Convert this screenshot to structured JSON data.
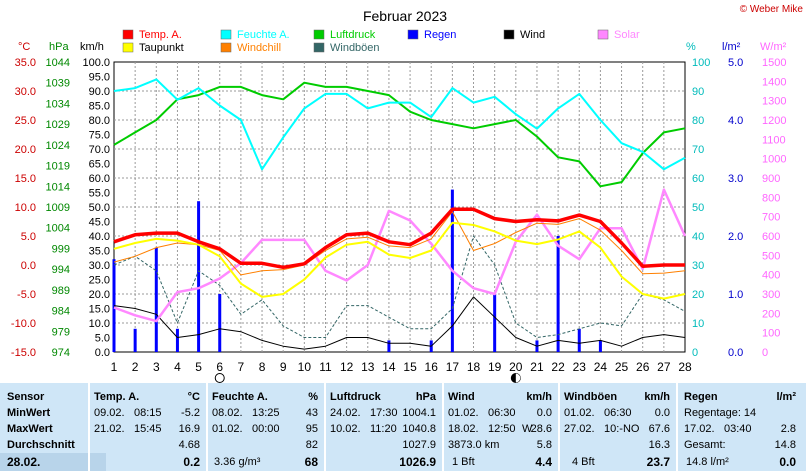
{
  "title": "Februar 2023",
  "credit": "© Weber Mike",
  "legend": [
    {
      "label": "Temp. A.",
      "color": "#ff0000"
    },
    {
      "label": "Feuchte A.",
      "color": "#00ffff"
    },
    {
      "label": "Luftdruck",
      "color": "#00cc00"
    },
    {
      "label": "Regen",
      "color": "#0000ff"
    },
    {
      "label": "Wind",
      "color": "#000000"
    },
    {
      "label": "Solar",
      "color": "#ff88ff"
    },
    {
      "label": "Taupunkt",
      "color": "#ffff00"
    },
    {
      "label": "Windchill",
      "color": "#ff8000"
    },
    {
      "label": "Windböen",
      "color": "#336666"
    }
  ],
  "axes": {
    "temp": {
      "unit": "°C",
      "ticks": [
        "35.0",
        "30.0",
        "25.0",
        "20.0",
        "15.0",
        "10.0",
        "5.0",
        "0.0",
        "-5.0",
        "-10.0",
        "-15.0"
      ]
    },
    "pressure": {
      "unit": "hPa",
      "ticks": [
        "1044",
        "1039",
        "1034",
        "1029",
        "1024",
        "1019",
        "1014",
        "1009",
        "1004",
        "999",
        "994",
        "989",
        "984",
        "979",
        "974"
      ]
    },
    "wind": {
      "unit": "km/h",
      "ticks": [
        "100.0",
        "95.0",
        "90.0",
        "85.0",
        "80.0",
        "75.0",
        "70.0",
        "65.0",
        "60.0",
        "55.0",
        "50.0",
        "45.0",
        "40.0",
        "35.0",
        "30.0",
        "25.0",
        "20.0",
        "15.0",
        "10.0",
        "5.0",
        "0.0"
      ]
    },
    "humidity": {
      "unit": "%",
      "ticks": [
        "100",
        "90",
        "80",
        "70",
        "60",
        "50",
        "40",
        "30",
        "20",
        "10",
        "0"
      ]
    },
    "rain": {
      "unit": "l/m²",
      "ticks": [
        "5.0",
        "4.0",
        "3.0",
        "2.0",
        "1.0",
        "0.0"
      ]
    },
    "solar": {
      "unit": "W/m²",
      "ticks": [
        "1500",
        "1400",
        "1300",
        "1200",
        "1100",
        "1000",
        "900",
        "800",
        "700",
        "600",
        "500",
        "400",
        "300",
        "200",
        "100",
        "0"
      ]
    },
    "days": [
      "1",
      "2",
      "3",
      "4",
      "5",
      "6",
      "7",
      "8",
      "9",
      "10",
      "11",
      "12",
      "13",
      "14",
      "15",
      "16",
      "17",
      "18",
      "19",
      "20",
      "21",
      "22",
      "23",
      "24",
      "25",
      "26",
      "27",
      "28"
    ]
  },
  "chart_data": {
    "type": "line",
    "title": "Februar 2023",
    "x": [
      1,
      2,
      3,
      4,
      5,
      6,
      7,
      8,
      9,
      10,
      11,
      12,
      13,
      14,
      15,
      16,
      17,
      18,
      19,
      20,
      21,
      22,
      23,
      24,
      25,
      26,
      27,
      28
    ],
    "grid": true,
    "ylim_temp": [
      -15,
      35
    ],
    "ylim_humidity": [
      0,
      100
    ],
    "ylim_wind": [
      0,
      100
    ],
    "ylim_rain": [
      0,
      5
    ],
    "ylim_solar": [
      0,
      1500
    ],
    "series": [
      {
        "name": "Temp. A.",
        "axis": "temp",
        "color": "#ff0000",
        "values": [
          4.0,
          5.2,
          5.5,
          5.5,
          4.0,
          2.8,
          0.3,
          0.3,
          -0.4,
          0.2,
          3.0,
          5.2,
          5.5,
          4.0,
          3.5,
          5.5,
          9.6,
          9.6,
          8.0,
          7.5,
          7.8,
          7.6,
          8.6,
          7.5,
          3.8,
          -0.2,
          0,
          0
        ]
      },
      {
        "name": "Taupunkt",
        "axis": "temp",
        "color": "#ffff00",
        "values": [
          2.8,
          3.8,
          4.5,
          4.2,
          3.5,
          1.5,
          -3.2,
          -5.5,
          -5.0,
          -2.5,
          1.3,
          3.5,
          4.0,
          1.8,
          1.2,
          2.5,
          7.3,
          6.9,
          5.8,
          4.2,
          3.6,
          4.4,
          5.8,
          3.0,
          -2.0,
          -5.0,
          -5.8,
          -5.0
        ]
      },
      {
        "name": "Feuchte A.",
        "axis": "humidity",
        "color": "#00ffff",
        "values": [
          90,
          91,
          94,
          87,
          91,
          85,
          80,
          63,
          74,
          84,
          89,
          89,
          84,
          86,
          86,
          81,
          91,
          86,
          88,
          82,
          77,
          84,
          89,
          80,
          72,
          69,
          63,
          67
        ]
      },
      {
        "name": "Luftdruck",
        "axis": "pressure",
        "color": "#00cc00",
        "values": [
          1024,
          1027,
          1030,
          1035,
          1036,
          1038,
          1038,
          1036,
          1035,
          1039,
          1038,
          1038,
          1037,
          1036,
          1032,
          1030,
          1029,
          1028,
          1029,
          1030,
          1026,
          1021,
          1020,
          1014,
          1015,
          1022,
          1027,
          1028
        ]
      },
      {
        "name": "Regen",
        "axis": "rain",
        "color": "#0000ff",
        "type": "bar",
        "values": [
          1.6,
          0.4,
          1.8,
          0.4,
          2.6,
          1.0,
          0,
          0,
          0,
          0,
          0,
          0,
          0,
          0.2,
          0,
          0.2,
          2.8,
          0,
          1.0,
          0,
          0.2,
          2.0,
          0.4,
          0.2,
          0,
          0,
          0,
          0
        ]
      },
      {
        "name": "Wind",
        "axis": "wind",
        "color": "#000000",
        "values": [
          16,
          15,
          13,
          5,
          6,
          8,
          7,
          4,
          2,
          1,
          2,
          5,
          5,
          3,
          3,
          2,
          9,
          19,
          12,
          5,
          2,
          4,
          3,
          4,
          2,
          5,
          6,
          5
        ]
      },
      {
        "name": "Solar",
        "axis": "solar",
        "color": "#ff88ff",
        "values": [
          230,
          190,
          160,
          310,
          330,
          380,
          460,
          580,
          580,
          580,
          420,
          370,
          450,
          730,
          680,
          560,
          420,
          330,
          300,
          570,
          710,
          550,
          480,
          640,
          640,
          430,
          840,
          600
        ]
      },
      {
        "name": "Windchill",
        "axis": "temp",
        "color": "#ff8000",
        "values": [
          0.5,
          1.5,
          3.0,
          3.8,
          3.5,
          2.5,
          -1.7,
          -1.0,
          -0.8,
          0.0,
          2.5,
          4.5,
          4.8,
          3.3,
          3.0,
          4.5,
          9.2,
          2.5,
          3.7,
          5.6,
          7.2,
          7.0,
          8.0,
          6.0,
          2.5,
          -1.5,
          -1.4,
          -1.0
        ]
      },
      {
        "name": "Windböen",
        "axis": "wind",
        "color": "#336666",
        "values": [
          30,
          33,
          28,
          10,
          28,
          23,
          13,
          18,
          9,
          5,
          5,
          16,
          16,
          12,
          8,
          8,
          15,
          40,
          30,
          10,
          5,
          6,
          8,
          10,
          9,
          20,
          18,
          14
        ]
      }
    ]
  },
  "table": {
    "sensor": {
      "header": "Sensor",
      "rows": [
        "MinWert",
        "MaxWert",
        "Durchschnitt",
        "28.02."
      ]
    },
    "temp": {
      "header": "Temp. A.",
      "unit": "°C",
      "min_date": "09.02.",
      "min_time": "08:15",
      "min_val": "-5.2",
      "max_date": "21.02.",
      "max_time": "15:45",
      "max_val": "16.9",
      "avg": "4.68",
      "today": "0.2"
    },
    "hum": {
      "header": "Feuchte A.",
      "unit": "%",
      "min_date": "08.02.",
      "min_time": "13:25",
      "min_val": "43",
      "max_date": "01.02.",
      "max_time": "00:00",
      "max_val": "95",
      "avg": "82",
      "abs": "3.36 g/m³",
      "today": "68"
    },
    "press": {
      "header": "Luftdruck",
      "unit": "hPa",
      "min_date": "24.02.",
      "min_time": "17:30",
      "min_val": "1004.1",
      "max_date": "10.02.",
      "max_time": "11:20",
      "max_val": "1040.8",
      "avg": "1027.9",
      "today": "1026.9"
    },
    "wind": {
      "header": "Wind",
      "unit": "km/h",
      "min_date": "01.02.",
      "min_time": "06:30",
      "min_val": "0.0",
      "max_date": "18.02.",
      "max_time": "12:50",
      "max_dir": "W",
      "max_val": "28.6",
      "dist": "3873.0 km",
      "avg": "5.8",
      "bft": "1 Bft",
      "today": "4.4"
    },
    "gust": {
      "header": "Windböen",
      "unit": "km/h",
      "min_date": "01.02.",
      "min_time": "06:30",
      "min_val": "0.0",
      "max_date": "27.02.",
      "max_time": "10:-NO",
      "max_val": "67.6",
      "avg": "16.3",
      "bft": "4 Bft",
      "today": "23.7"
    },
    "rain": {
      "header": "Regen",
      "unit": "l/m²",
      "days_label": "Regentage: 14",
      "max_date": "17.02.",
      "max_time": "03:40",
      "max_val": "2.8",
      "total_label": "Gesamt:",
      "total_val": "14.8",
      "today_label": "14.8 l/m²",
      "today": "0.0"
    }
  }
}
